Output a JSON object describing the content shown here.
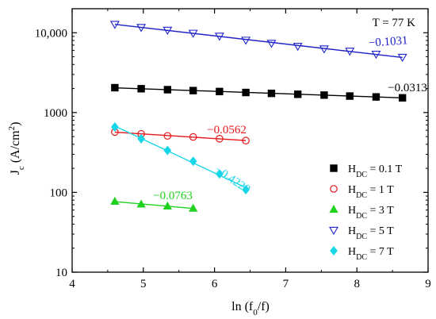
{
  "chart_data": {
    "type": "scatter",
    "annotation_corner": "T = 77 K",
    "xlabel": {
      "text": "ln (f",
      "sub": "0",
      "tail": "/f)"
    },
    "ylabel": {
      "text": "J",
      "sub": "c",
      "mid": " (A/cm",
      "sup": "2",
      "tail": ")"
    },
    "x_scale": "linear",
    "y_scale": "log",
    "xlim": [
      4,
      9
    ],
    "ylim": [
      10,
      20000
    ],
    "x_ticks": [
      4,
      5,
      6,
      7,
      8,
      9
    ],
    "x_tick_labels": [
      "4",
      "5",
      "6",
      "7",
      "8",
      "9"
    ],
    "y_ticks": [
      10,
      100,
      1000,
      10000
    ],
    "y_tick_labels": [
      "10",
      "100",
      "1000",
      "10,000"
    ],
    "legend_position": "bottom-right",
    "series": [
      {
        "legend": {
          "main": "H",
          "sub": "DC",
          "value": " = 0.1 T"
        },
        "marker": "square-filled",
        "color": "#000000",
        "slope_label": "−0.0313",
        "x": [
          4.6,
          4.97,
          5.34,
          5.7,
          6.07,
          6.44,
          6.8,
          7.17,
          7.54,
          7.9,
          8.27,
          8.64
        ],
        "y": [
          2050,
          1990,
          1935,
          1885,
          1835,
          1785,
          1740,
          1695,
          1655,
          1610,
          1570,
          1530
        ]
      },
      {
        "legend": {
          "main": "H",
          "sub": "DC",
          "value": " = 1 T"
        },
        "marker": "circle-open",
        "color": "#e8161b",
        "slope_label": "−0.0562",
        "x": [
          4.6,
          4.97,
          5.34,
          5.7,
          6.07,
          6.44
        ],
        "y": [
          570,
          540,
          510,
          495,
          470,
          445
        ]
      },
      {
        "legend": {
          "main": "H",
          "sub": "DC",
          "value": " = 3 T"
        },
        "marker": "triangle-up-filled",
        "color": "#21d11f",
        "slope_label": "−0.0763",
        "x": [
          4.6,
          4.97,
          5.34,
          5.7
        ],
        "y": [
          77,
          71,
          67,
          63
        ]
      },
      {
        "legend": {
          "main": "H",
          "sub": "DC",
          "value": " = 5 T"
        },
        "marker": "triangle-down-open",
        "color": "#1f23c8",
        "slope_label": "−0.1031",
        "x": [
          4.6,
          4.97,
          5.34,
          5.7,
          6.07,
          6.44,
          6.8,
          7.17,
          7.54,
          7.9,
          8.27,
          8.64
        ],
        "y": [
          12800,
          11700,
          10800,
          9900,
          9100,
          8100,
          7400,
          6800,
          6300,
          5900,
          5400,
          4950
        ]
      },
      {
        "legend": {
          "main": "H",
          "sub": "DC",
          "value": " = 7 T"
        },
        "marker": "diamond-filled",
        "color": "#16d6e8",
        "slope_label": "−0.4228",
        "x": [
          4.6,
          4.97,
          5.34,
          5.7,
          6.07,
          6.44
        ],
        "y": [
          660,
          470,
          335,
          245,
          170,
          108
        ]
      }
    ]
  }
}
